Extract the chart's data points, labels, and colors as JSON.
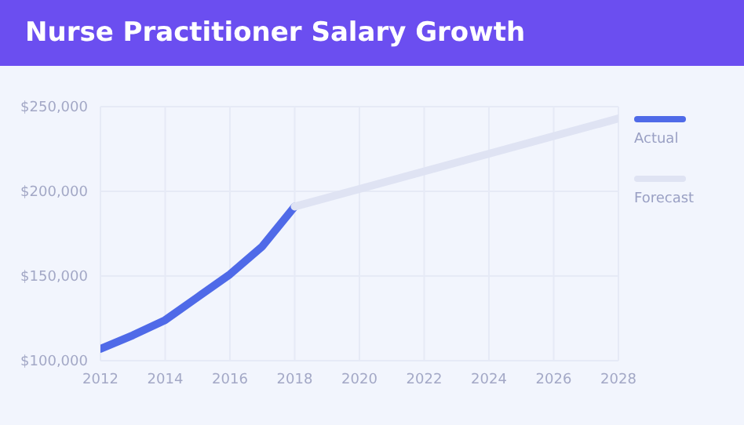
{
  "chart_data": {
    "type": "line",
    "title": "Nurse Practitioner Salary Growth",
    "series": [
      {
        "name": "Actual",
        "color": "#4f6ae8",
        "x": [
          2012,
          2013,
          2014,
          2015,
          2016,
          2017,
          2018
        ],
        "values": [
          107000,
          115000,
          124000,
          137500,
          151000,
          167500,
          191000
        ]
      },
      {
        "name": "Forecast",
        "color": "#dfe3f3",
        "x": [
          2018,
          2028
        ],
        "values": [
          191000,
          243000
        ]
      }
    ],
    "xlim": [
      2012,
      2028
    ],
    "xticks": [
      2012,
      2014,
      2016,
      2018,
      2020,
      2022,
      2024,
      2026,
      2028
    ],
    "ylim": [
      100000,
      250000
    ],
    "yticks": [
      {
        "value": 100000,
        "label": "$100,000"
      },
      {
        "value": 150000,
        "label": "$150,000"
      },
      {
        "value": 200000,
        "label": "$200,000"
      },
      {
        "value": 250000,
        "label": "$250,000"
      }
    ],
    "grid": true,
    "legend": "right",
    "marker": "none",
    "line_style": "solid"
  }
}
